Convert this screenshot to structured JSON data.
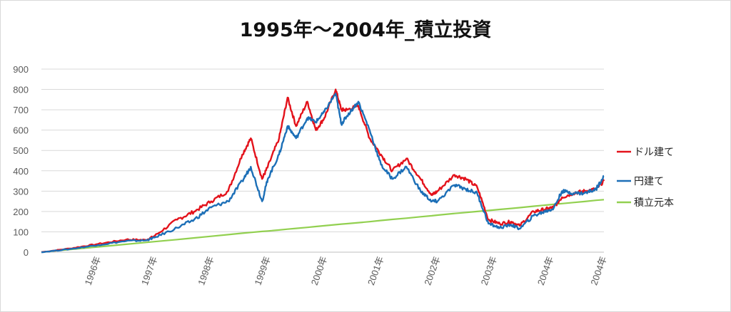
{
  "chart_data": {
    "type": "line",
    "title": "1995年～2004年_積立投資",
    "xlabel": "",
    "ylabel": "",
    "ylim": [
      0,
      900
    ],
    "yticks": [
      "0",
      "100",
      "200",
      "300",
      "400",
      "500",
      "600",
      "700",
      "800",
      "900"
    ],
    "xlim": [
      1995.0,
      2004.94
    ],
    "x_ticks": [
      "1996年",
      "1997年",
      "1998年",
      "1999年",
      "2000年",
      "2001年",
      "2002年",
      "2003年",
      "2004年",
      "2004年"
    ],
    "grid": true,
    "legend": "right",
    "x": [
      1995.0,
      1995.5,
      1996.0,
      1996.5,
      1996.85,
      1997.0,
      1997.4,
      1997.7,
      1998.0,
      1998.3,
      1998.55,
      1998.7,
      1998.9,
      1999.0,
      1999.2,
      1999.35,
      1999.5,
      1999.7,
      1999.85,
      2000.0,
      2000.2,
      2000.3,
      2000.4,
      2000.6,
      2000.8,
      2001.0,
      2001.2,
      2001.45,
      2001.7,
      2001.9,
      2002.0,
      2002.3,
      2002.5,
      2002.7,
      2002.9,
      2003.1,
      2003.3,
      2003.45,
      2003.7,
      2003.9,
      2004.05,
      2004.2,
      2004.4,
      2004.6,
      2004.8,
      2004.94
    ],
    "series": [
      {
        "name": "ドル建て",
        "color": "#e3121b",
        "values": [
          0,
          18,
          40,
          62,
          60,
          80,
          160,
          200,
          250,
          300,
          480,
          560,
          360,
          420,
          560,
          760,
          620,
          740,
          600,
          660,
          800,
          700,
          700,
          720,
          560,
          480,
          400,
          460,
          360,
          280,
          300,
          380,
          360,
          320,
          160,
          140,
          150,
          130,
          200,
          210,
          220,
          270,
          290,
          300,
          310,
          350
        ]
      },
      {
        "name": "円建て",
        "color": "#1c6fb7",
        "values": [
          0,
          15,
          35,
          55,
          58,
          72,
          120,
          160,
          220,
          250,
          350,
          420,
          250,
          360,
          480,
          620,
          560,
          660,
          640,
          690,
          780,
          630,
          670,
          740,
          600,
          430,
          360,
          420,
          300,
          250,
          250,
          330,
          310,
          290,
          140,
          120,
          135,
          115,
          180,
          200,
          215,
          300,
          290,
          290,
          310,
          375
        ]
      },
      {
        "name": "積立元本",
        "color": "#92d050",
        "values": [
          0,
          13,
          26,
          39,
          48,
          52,
          62,
          70,
          78,
          86,
          93,
          97,
          102,
          104,
          109,
          113,
          117,
          122,
          126,
          130,
          135,
          138,
          140,
          145,
          150,
          156,
          161,
          167,
          174,
          179,
          182,
          190,
          195,
          200,
          205,
          210,
          215,
          219,
          226,
          231,
          235,
          239,
          244,
          249,
          255,
          258
        ]
      }
    ]
  }
}
